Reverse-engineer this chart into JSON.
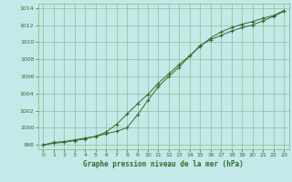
{
  "title": "Graphe pression niveau de la mer (hPa)",
  "bg_color": "#c5e8e8",
  "grid_color": "#7db87d",
  "line_color": "#2d6e2d",
  "xlim": [
    -0.5,
    23.5
  ],
  "ylim": [
    997.5,
    1014.5
  ],
  "xticks": [
    0,
    1,
    2,
    3,
    4,
    5,
    6,
    7,
    8,
    9,
    10,
    11,
    12,
    13,
    14,
    15,
    16,
    17,
    18,
    19,
    20,
    21,
    22,
    23
  ],
  "yticks": [
    998,
    1000,
    1002,
    1004,
    1006,
    1008,
    1010,
    1012,
    1014
  ],
  "line1_x": [
    0,
    1,
    2,
    3,
    4,
    5,
    6,
    7,
    8,
    9,
    10,
    11,
    12,
    13,
    14,
    15,
    16,
    17,
    18,
    19,
    20,
    21,
    22,
    23
  ],
  "line1_y": [
    998.0,
    998.3,
    998.4,
    998.6,
    998.8,
    999.0,
    999.3,
    999.6,
    1000.0,
    1001.5,
    1003.2,
    1004.8,
    1006.0,
    1007.1,
    1008.4,
    1009.6,
    1010.3,
    1010.8,
    1011.3,
    1011.7,
    1012.0,
    1012.5,
    1013.0,
    1013.6
  ],
  "line2_x": [
    0,
    1,
    2,
    3,
    4,
    5,
    6,
    7,
    8,
    9,
    10,
    11,
    12,
    13,
    14,
    15,
    16,
    17,
    18,
    19,
    20,
    21,
    22,
    23
  ],
  "line2_y": [
    998.0,
    998.2,
    998.3,
    998.5,
    998.7,
    999.0,
    999.5,
    1000.4,
    1001.6,
    1002.8,
    1003.9,
    1005.2,
    1006.3,
    1007.4,
    1008.4,
    1009.5,
    1010.5,
    1011.2,
    1011.7,
    1012.1,
    1012.4,
    1012.8,
    1013.1,
    1013.7
  ]
}
